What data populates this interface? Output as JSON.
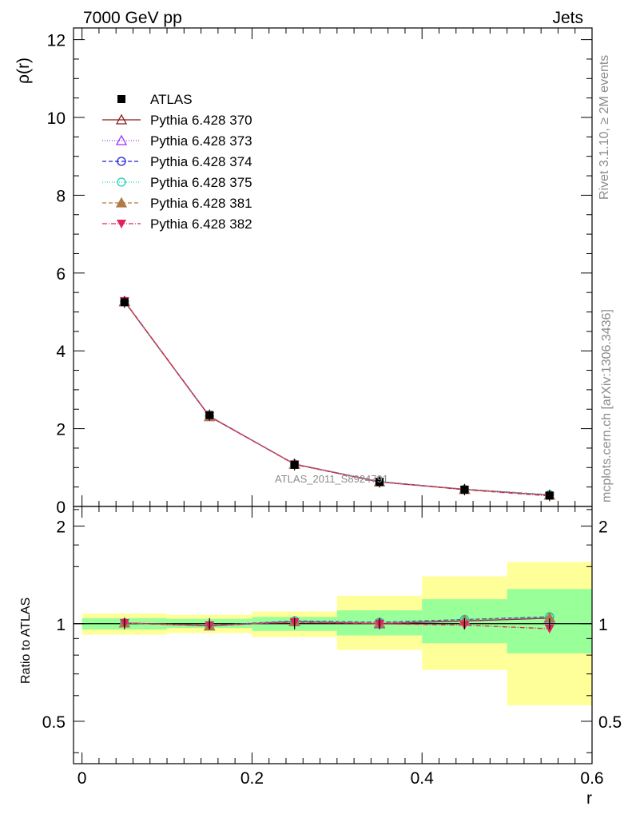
{
  "header": {
    "left": "7000 GeV pp",
    "right": "Jets"
  },
  "side_text": {
    "top": "Rivet 3.1.10, ≥ 2M events",
    "bottom": "mcplots.cern.ch [arXiv:1306.3436]"
  },
  "watermark": "ATLAS_2011_S8924791",
  "chart_data": [
    {
      "type": "line",
      "panel": "main",
      "ylabel": "ρ(r)",
      "xlim": [
        -0.01,
        0.6
      ],
      "ylim": [
        0,
        12.3
      ],
      "yticks": [
        0,
        2,
        4,
        6,
        8,
        10,
        12
      ],
      "ytick_labels": [
        "0",
        "2",
        "4",
        "6",
        "8",
        "10",
        "12"
      ],
      "x": [
        0.05,
        0.15,
        0.25,
        0.35,
        0.45,
        0.55
      ],
      "data": {
        "name": "ATLAS",
        "values": [
          5.25,
          2.35,
          1.07,
          0.63,
          0.43,
          0.28
        ]
      },
      "series": [
        {
          "name": "Pythia 6.428 370",
          "color": "#8b1a1a",
          "dash": "",
          "marker": "triangle-open",
          "values": [
            5.27,
            2.31,
            1.09,
            0.63,
            0.44,
            0.29
          ]
        },
        {
          "name": "Pythia 6.428 373",
          "color": "#9b30ff",
          "dash": "1,2",
          "marker": "triangle-open",
          "values": [
            5.27,
            2.31,
            1.09,
            0.63,
            0.44,
            0.29
          ]
        },
        {
          "name": "Pythia 6.428 374",
          "color": "#1f1fd6",
          "dash": "5,3",
          "marker": "circle-open",
          "values": [
            5.27,
            2.32,
            1.09,
            0.64,
            0.44,
            0.3
          ]
        },
        {
          "name": "Pythia 6.428 375",
          "color": "#1fcfb4",
          "dash": "1,2",
          "marker": "circle-open",
          "values": [
            5.27,
            2.32,
            1.09,
            0.64,
            0.44,
            0.3
          ]
        },
        {
          "name": "Pythia 6.428 381",
          "color": "#b07a45",
          "dash": "5,3",
          "marker": "triangle-filled",
          "values": [
            5.26,
            2.31,
            1.09,
            0.63,
            0.44,
            0.29
          ]
        },
        {
          "name": "Pythia 6.428 382",
          "color": "#e0245e",
          "dash": "6,2,1,2",
          "marker": "triangle-down-filled",
          "values": [
            5.28,
            2.32,
            1.08,
            0.63,
            0.43,
            0.27
          ]
        }
      ],
      "legend": "top-left"
    },
    {
      "type": "line",
      "panel": "ratio",
      "xlabel": "r",
      "ylabel": "Ratio to ATLAS",
      "xlim": [
        -0.01,
        0.6
      ],
      "ylim": [
        0.37,
        2.3
      ],
      "yscale": "log",
      "yticks": [
        0.5,
        1,
        2
      ],
      "ytick_labels": [
        "0.5",
        "1",
        "2"
      ],
      "xticks": [
        0,
        0.2,
        0.4,
        0.6
      ],
      "xtick_labels": [
        "0",
        "0.2",
        "0.4",
        "0.6"
      ],
      "x": [
        0.05,
        0.15,
        0.25,
        0.35,
        0.45,
        0.55
      ],
      "bins": [
        [
          0,
          0.1
        ],
        [
          0.1,
          0.2
        ],
        [
          0.2,
          0.3
        ],
        [
          0.3,
          0.4
        ],
        [
          0.4,
          0.5
        ],
        [
          0.5,
          0.6
        ]
      ],
      "band_green": [
        [
          0.96,
          1.04
        ],
        [
          0.97,
          1.035
        ],
        [
          0.95,
          1.05
        ],
        [
          0.92,
          1.1
        ],
        [
          0.87,
          1.19
        ],
        [
          0.81,
          1.28
        ]
      ],
      "band_yellow": [
        [
          0.925,
          1.075
        ],
        [
          0.935,
          1.065
        ],
        [
          0.91,
          1.09
        ],
        [
          0.83,
          1.22
        ],
        [
          0.72,
          1.4
        ],
        [
          0.56,
          1.55
        ]
      ],
      "series": [
        {
          "name": "Pythia 6.428 370",
          "values": [
            1.005,
            0.985,
            1.015,
            1.0,
            1.02,
            1.04
          ]
        },
        {
          "name": "Pythia 6.428 373",
          "values": [
            1.005,
            0.985,
            1.015,
            1.0,
            1.02,
            1.04
          ]
        },
        {
          "name": "Pythia 6.428 374",
          "values": [
            1.005,
            0.987,
            1.02,
            1.01,
            1.03,
            1.05
          ]
        },
        {
          "name": "Pythia 6.428 375",
          "values": [
            1.005,
            0.987,
            1.02,
            1.01,
            1.03,
            1.05
          ]
        },
        {
          "name": "Pythia 6.428 381",
          "values": [
            1.005,
            0.985,
            1.015,
            1.005,
            1.025,
            1.045
          ]
        },
        {
          "name": "Pythia 6.428 382",
          "values": [
            1.005,
            0.988,
            1.01,
            1.0,
            0.99,
            0.965
          ]
        }
      ]
    }
  ]
}
